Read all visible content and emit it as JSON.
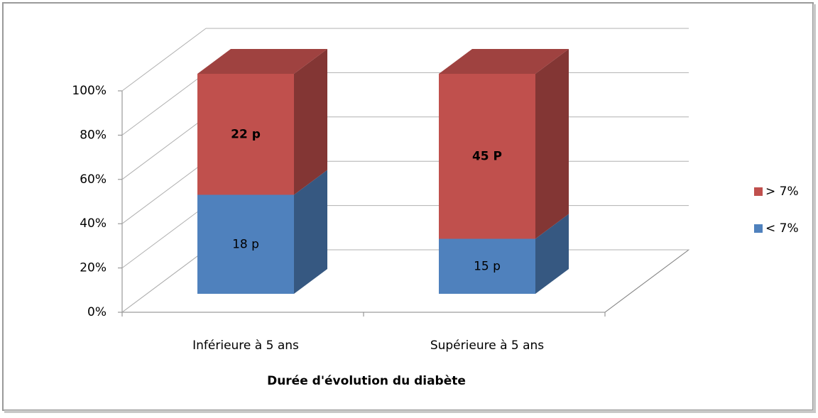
{
  "chart_data": {
    "type": "bar3d",
    "stack": "percent",
    "categories": [
      "Inférieure à 5 ans",
      "Supérieure à 5 ans"
    ],
    "xlabel": "Durée d'évolution du diabète",
    "series": [
      {
        "name": "< 7%",
        "color": "#4f81bd",
        "values": [
          18,
          15
        ],
        "value_labels": [
          "18 p",
          "15 p"
        ]
      },
      {
        "name": "> 7%",
        "color": "#c0504d",
        "values": [
          22,
          45
        ],
        "value_labels": [
          "22 p",
          "45 P"
        ]
      }
    ],
    "ylim": [
      0,
      100
    ],
    "yticks": [
      {
        "value": 0,
        "label": "0%"
      },
      {
        "value": 20,
        "label": "20%"
      },
      {
        "value": 40,
        "label": "40%"
      },
      {
        "value": 60,
        "label": "60%"
      },
      {
        "value": 80,
        "label": "80%"
      },
      {
        "value": 100,
        "label": "100%"
      }
    ],
    "grid": true,
    "legend": "right"
  }
}
